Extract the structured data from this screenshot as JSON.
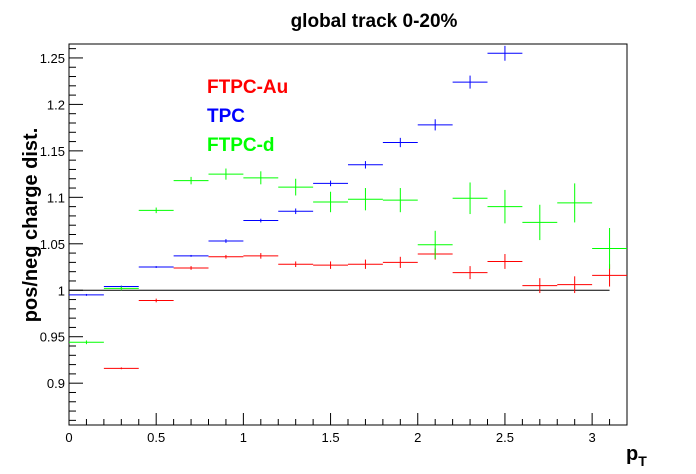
{
  "chart_data": {
    "type": "scatter",
    "title": "global track 0-20%",
    "xlabel": "p",
    "xlabel_sub": "T",
    "ylabel": "pos/neg charge dist.",
    "xlim": [
      0,
      3.2
    ],
    "ylim": [
      0.855,
      1.265
    ],
    "x_ticks": [
      0,
      0.5,
      1,
      1.5,
      2,
      2.5,
      3
    ],
    "x_tick_labels": [
      "0",
      "0.5",
      "1",
      "1.5",
      "2",
      "2.5",
      "3"
    ],
    "y_ticks": [
      0.9,
      0.95,
      1,
      1.05,
      1.1,
      1.15,
      1.2,
      1.25
    ],
    "y_tick_labels": [
      "0.9",
      "0.95",
      "1",
      "1.05",
      "1.1",
      "1.15",
      "1.2",
      "1.25"
    ],
    "reference_line": 1,
    "grid": false,
    "legend_position": "top-left",
    "series": [
      {
        "name": "FTPC-Au",
        "color": "#ff0000",
        "points": [
          {
            "x": 0.3,
            "y": 0.916,
            "xerr": 0.1,
            "yerr": 0.001
          },
          {
            "x": 0.5,
            "y": 0.989,
            "xerr": 0.1,
            "yerr": 0.002
          },
          {
            "x": 0.7,
            "y": 1.024,
            "xerr": 0.1,
            "yerr": 0.002
          },
          {
            "x": 0.9,
            "y": 1.036,
            "xerr": 0.1,
            "yerr": 0.002
          },
          {
            "x": 1.1,
            "y": 1.037,
            "xerr": 0.1,
            "yerr": 0.003
          },
          {
            "x": 1.3,
            "y": 1.028,
            "xerr": 0.1,
            "yerr": 0.003
          },
          {
            "x": 1.5,
            "y": 1.027,
            "xerr": 0.1,
            "yerr": 0.004
          },
          {
            "x": 1.7,
            "y": 1.028,
            "xerr": 0.1,
            "yerr": 0.005
          },
          {
            "x": 1.9,
            "y": 1.03,
            "xerr": 0.1,
            "yerr": 0.006
          },
          {
            "x": 2.1,
            "y": 1.039,
            "xerr": 0.1,
            "yerr": 0.006
          },
          {
            "x": 2.3,
            "y": 1.019,
            "xerr": 0.1,
            "yerr": 0.007
          },
          {
            "x": 2.5,
            "y": 1.031,
            "xerr": 0.1,
            "yerr": 0.008
          },
          {
            "x": 2.7,
            "y": 1.005,
            "xerr": 0.1,
            "yerr": 0.008
          },
          {
            "x": 2.9,
            "y": 1.006,
            "xerr": 0.1,
            "yerr": 0.009
          },
          {
            "x": 3.1,
            "y": 1.016,
            "xerr": 0.1,
            "yerr": 0.012
          }
        ]
      },
      {
        "name": "TPC",
        "color": "#0000ff",
        "points": [
          {
            "x": 0.1,
            "y": 0.995,
            "xerr": 0.1,
            "yerr": 0.001
          },
          {
            "x": 0.3,
            "y": 1.004,
            "xerr": 0.1,
            "yerr": 0.001
          },
          {
            "x": 0.5,
            "y": 1.025,
            "xerr": 0.1,
            "yerr": 0.001
          },
          {
            "x": 0.7,
            "y": 1.037,
            "xerr": 0.1,
            "yerr": 0.001
          },
          {
            "x": 0.9,
            "y": 1.053,
            "xerr": 0.1,
            "yerr": 0.002
          },
          {
            "x": 1.1,
            "y": 1.075,
            "xerr": 0.1,
            "yerr": 0.002
          },
          {
            "x": 1.3,
            "y": 1.085,
            "xerr": 0.1,
            "yerr": 0.003
          },
          {
            "x": 1.5,
            "y": 1.115,
            "xerr": 0.1,
            "yerr": 0.003
          },
          {
            "x": 1.7,
            "y": 1.135,
            "xerr": 0.1,
            "yerr": 0.004
          },
          {
            "x": 1.9,
            "y": 1.159,
            "xerr": 0.1,
            "yerr": 0.005
          },
          {
            "x": 2.1,
            "y": 1.178,
            "xerr": 0.1,
            "yerr": 0.006
          },
          {
            "x": 2.3,
            "y": 1.224,
            "xerr": 0.1,
            "yerr": 0.007
          },
          {
            "x": 2.5,
            "y": 1.255,
            "xerr": 0.1,
            "yerr": 0.008
          }
        ]
      },
      {
        "name": "FTPC-d",
        "color": "#00ff00",
        "points": [
          {
            "x": 0.1,
            "y": 0.944,
            "xerr": 0.1,
            "yerr": 0.002
          },
          {
            "x": 0.3,
            "y": 1.002,
            "xerr": 0.1,
            "yerr": 0.002
          },
          {
            "x": 0.5,
            "y": 1.086,
            "xerr": 0.1,
            "yerr": 0.003
          },
          {
            "x": 0.7,
            "y": 1.118,
            "xerr": 0.1,
            "yerr": 0.004
          },
          {
            "x": 0.9,
            "y": 1.125,
            "xerr": 0.1,
            "yerr": 0.006
          },
          {
            "x": 1.1,
            "y": 1.121,
            "xerr": 0.1,
            "yerr": 0.007
          },
          {
            "x": 1.3,
            "y": 1.111,
            "xerr": 0.1,
            "yerr": 0.009
          },
          {
            "x": 1.5,
            "y": 1.095,
            "xerr": 0.1,
            "yerr": 0.011
          },
          {
            "x": 1.7,
            "y": 1.098,
            "xerr": 0.1,
            "yerr": 0.012
          },
          {
            "x": 1.9,
            "y": 1.097,
            "xerr": 0.1,
            "yerr": 0.013
          },
          {
            "x": 2.1,
            "y": 1.049,
            "xerr": 0.1,
            "yerr": 0.015
          },
          {
            "x": 2.3,
            "y": 1.099,
            "xerr": 0.1,
            "yerr": 0.017
          },
          {
            "x": 2.5,
            "y": 1.09,
            "xerr": 0.1,
            "yerr": 0.018
          },
          {
            "x": 2.7,
            "y": 1.073,
            "xerr": 0.1,
            "yerr": 0.019
          },
          {
            "x": 2.9,
            "y": 1.094,
            "xerr": 0.1,
            "yerr": 0.021
          },
          {
            "x": 3.1,
            "y": 1.045,
            "xerr": 0.1,
            "yerr": 0.022
          }
        ]
      }
    ]
  }
}
